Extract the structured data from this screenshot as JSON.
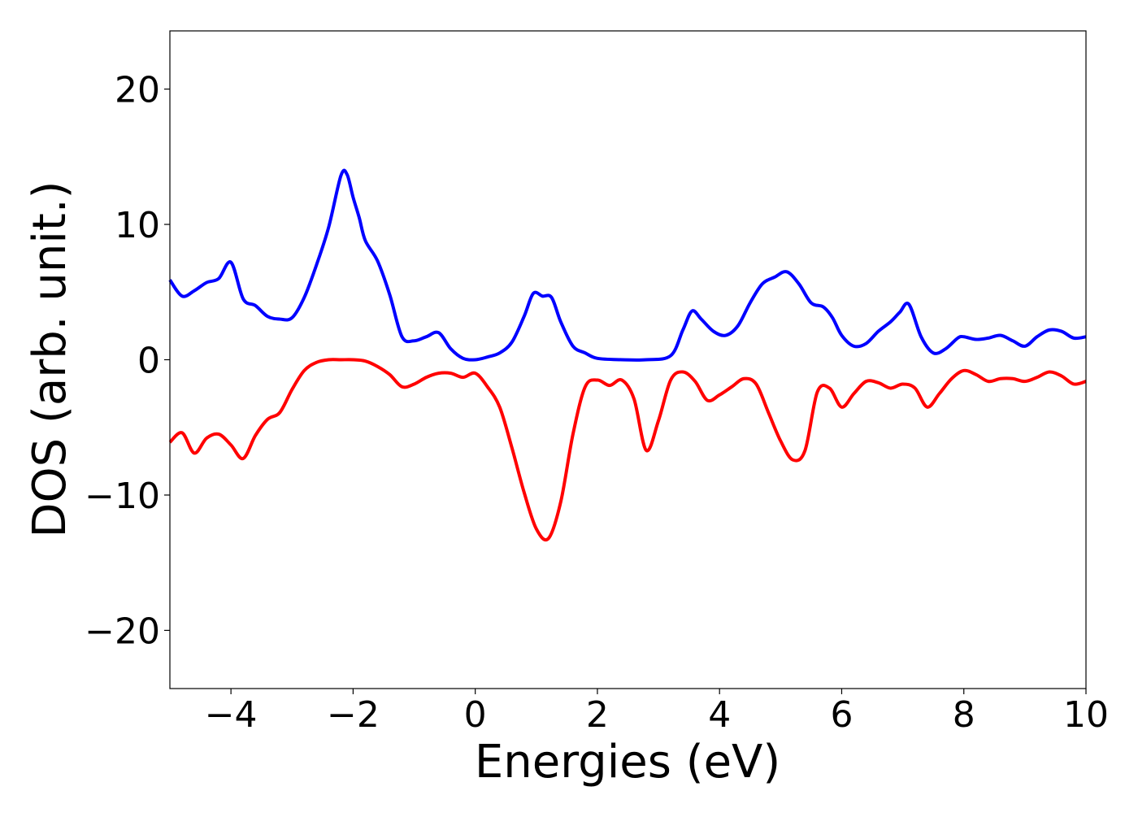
{
  "chart_data": {
    "type": "line",
    "xlabel": "Energies (eV)",
    "ylabel": "DOS (arb. unit.)",
    "xlim": [
      -5,
      10
    ],
    "ylim": [
      -24.3,
      24.3
    ],
    "xticks": [
      -4,
      -2,
      0,
      2,
      4,
      6,
      8,
      10
    ],
    "xtick_labels": [
      "−4",
      "−2",
      "0",
      "2",
      "4",
      "6",
      "8",
      "10"
    ],
    "yticks": [
      -20,
      -10,
      0,
      10,
      20
    ],
    "ytick_labels": [
      "−20",
      "−10",
      "0",
      "10",
      "20"
    ],
    "grid": false,
    "legend": "none",
    "series": [
      {
        "color": "#0000ff",
        "x": [
          -5.0,
          -4.8,
          -4.6,
          -4.4,
          -4.2,
          -4.0,
          -3.8,
          -3.6,
          -3.4,
          -3.2,
          -3.0,
          -2.8,
          -2.6,
          -2.4,
          -2.2,
          -2.1,
          -2.0,
          -1.9,
          -1.8,
          -1.6,
          -1.4,
          -1.2,
          -1.0,
          -0.8,
          -0.6,
          -0.4,
          -0.2,
          0.0,
          0.2,
          0.4,
          0.6,
          0.8,
          0.95,
          1.1,
          1.25,
          1.4,
          1.6,
          1.8,
          2.0,
          2.4,
          2.8,
          3.2,
          3.4,
          3.55,
          3.7,
          3.9,
          4.1,
          4.3,
          4.5,
          4.7,
          4.9,
          5.1,
          5.3,
          5.5,
          5.7,
          5.85,
          6.0,
          6.2,
          6.4,
          6.6,
          6.8,
          6.95,
          7.1,
          7.3,
          7.5,
          7.7,
          7.9,
          8.0,
          8.2,
          8.4,
          8.6,
          8.8,
          9.0,
          9.2,
          9.4,
          9.6,
          9.8,
          10.0
        ],
        "y": [
          5.9,
          4.7,
          5.1,
          5.7,
          6.0,
          7.2,
          4.5,
          4.0,
          3.2,
          3.0,
          3.1,
          4.6,
          7.0,
          9.8,
          13.6,
          13.7,
          12.0,
          10.5,
          8.8,
          7.3,
          4.8,
          1.7,
          1.4,
          1.7,
          2.0,
          0.8,
          0.1,
          0.0,
          0.2,
          0.5,
          1.3,
          3.2,
          4.9,
          4.7,
          4.6,
          2.8,
          1.0,
          0.5,
          0.1,
          0.0,
          0.0,
          0.3,
          2.2,
          3.6,
          3.0,
          2.1,
          1.8,
          2.5,
          4.2,
          5.6,
          6.1,
          6.5,
          5.6,
          4.2,
          3.9,
          3.1,
          1.8,
          1.0,
          1.2,
          2.1,
          2.8,
          3.5,
          4.1,
          1.7,
          0.5,
          0.8,
          1.6,
          1.7,
          1.5,
          1.6,
          1.8,
          1.4,
          1.0,
          1.7,
          2.2,
          2.1,
          1.6,
          1.7
        ]
      },
      {
        "color": "#ff0000",
        "x": [
          -5.0,
          -4.8,
          -4.6,
          -4.4,
          -4.2,
          -4.0,
          -3.8,
          -3.6,
          -3.4,
          -3.2,
          -3.0,
          -2.8,
          -2.6,
          -2.4,
          -2.2,
          -2.0,
          -1.8,
          -1.6,
          -1.4,
          -1.2,
          -1.0,
          -0.8,
          -0.6,
          -0.4,
          -0.2,
          0.0,
          0.2,
          0.4,
          0.6,
          0.8,
          1.0,
          1.2,
          1.4,
          1.6,
          1.8,
          2.0,
          2.2,
          2.4,
          2.6,
          2.8,
          3.0,
          3.2,
          3.4,
          3.6,
          3.8,
          4.0,
          4.2,
          4.4,
          4.6,
          4.8,
          5.0,
          5.2,
          5.4,
          5.6,
          5.8,
          6.0,
          6.2,
          6.4,
          6.6,
          6.8,
          7.0,
          7.2,
          7.4,
          7.6,
          7.8,
          8.0,
          8.2,
          8.4,
          8.6,
          8.8,
          9.0,
          9.2,
          9.4,
          9.6,
          9.8,
          10.0
        ],
        "y": [
          -6.1,
          -5.4,
          -6.9,
          -5.8,
          -5.5,
          -6.3,
          -7.3,
          -5.6,
          -4.4,
          -3.9,
          -2.2,
          -0.8,
          -0.2,
          0.0,
          0.0,
          0.0,
          -0.1,
          -0.5,
          -1.1,
          -2.0,
          -1.8,
          -1.3,
          -1.0,
          -1.0,
          -1.3,
          -1.0,
          -2.0,
          -3.5,
          -6.5,
          -9.8,
          -12.5,
          -13.2,
          -10.5,
          -5.5,
          -2.0,
          -1.5,
          -1.9,
          -1.5,
          -2.9,
          -6.7,
          -4.5,
          -1.5,
          -0.9,
          -1.6,
          -3.0,
          -2.6,
          -2.0,
          -1.4,
          -1.8,
          -3.9,
          -6.0,
          -7.4,
          -6.7,
          -2.4,
          -2.1,
          -3.5,
          -2.5,
          -1.6,
          -1.7,
          -2.1,
          -1.8,
          -2.1,
          -3.5,
          -2.5,
          -1.4,
          -0.8,
          -1.1,
          -1.6,
          -1.4,
          -1.4,
          -1.6,
          -1.3,
          -0.9,
          -1.2,
          -1.8,
          -1.6
        ]
      }
    ]
  }
}
